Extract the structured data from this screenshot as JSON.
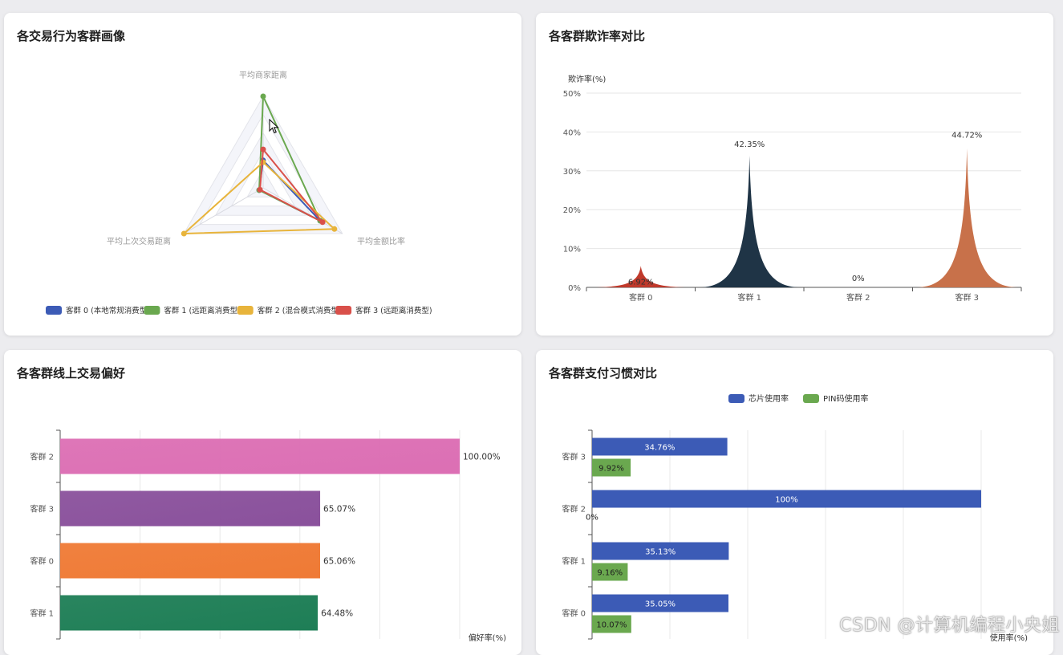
{
  "cards": {
    "radar": {
      "title": "各交易行为客群画像"
    },
    "fraud": {
      "title": "各客群欺诈率对比"
    },
    "online": {
      "title": "各客群线上交易偏好"
    },
    "payment": {
      "title": "各客群支付习惯对比"
    }
  },
  "watermark": "CSDN @计算机编程小央姐",
  "chart_data": [
    {
      "id": "radar",
      "type": "radar",
      "indicators": [
        "平均商家距离",
        "平均金额比率",
        "平均上次交易距离"
      ],
      "max": 1,
      "series": [
        {
          "name": "客群 0 (本地常规消费型)",
          "color": "#3c5bb6",
          "values": [
            0.3,
            0.72,
            0.05
          ]
        },
        {
          "name": "客群 1 (远距离消费型)",
          "color": "#6aa84f",
          "values": [
            1.0,
            0.72,
            0.05
          ]
        },
        {
          "name": "客群 2 (混合模式消费型)",
          "color": "#e8b43b",
          "values": [
            0.28,
            0.9,
            1.0
          ]
        },
        {
          "name": "客群 3 (远距离消费型)",
          "color": "#d9504a",
          "values": [
            0.42,
            0.75,
            0.04
          ]
        }
      ],
      "legend_position": "bottom"
    },
    {
      "id": "fraud",
      "type": "area",
      "ylabel": "欺诈率(%)",
      "ylim": [
        0,
        50
      ],
      "yticks": [
        "0%",
        "10%",
        "20%",
        "30%",
        "40%",
        "50%"
      ],
      "categories": [
        "客群 0",
        "客群 1",
        "客群 2",
        "客群 3"
      ],
      "values": [
        6.92,
        42.35,
        0,
        44.72
      ],
      "labels": [
        "6.92%",
        "42.35%",
        "0%",
        "44.72%"
      ],
      "colors": [
        "#c0392b",
        "#1f3446",
        "#888888",
        "#c8714a"
      ],
      "grid": true
    },
    {
      "id": "online",
      "type": "bar",
      "orientation": "horizontal",
      "xlabel": "偏好率(%)",
      "xlim": [
        0,
        100
      ],
      "categories": [
        "客群 2",
        "客群 3",
        "客群 0",
        "客群 1"
      ],
      "values": [
        100.0,
        65.07,
        65.06,
        64.48
      ],
      "labels": [
        "100.00%",
        "65.07%",
        "65.06%",
        "64.48%"
      ],
      "colors": [
        "#dc6fb4",
        "#8a519c",
        "#ef7a35",
        "#1e7e56"
      ],
      "grid": true
    },
    {
      "id": "payment",
      "type": "bar",
      "orientation": "horizontal",
      "xlabel": "使用率(%)",
      "xlim": [
        0,
        100
      ],
      "categories": [
        "客群 3",
        "客群 2",
        "客群 1",
        "客群 0"
      ],
      "series": [
        {
          "name": "芯片使用率",
          "color": "#3c5bb6",
          "values": [
            34.76,
            100,
            35.13,
            35.05
          ],
          "labels": [
            "34.76%",
            "100%",
            "35.13%",
            "35.05%"
          ]
        },
        {
          "name": "PIN码使用率",
          "color": "#6aa84f",
          "values": [
            9.92,
            0,
            9.16,
            10.07
          ],
          "labels": [
            "9.92%",
            "0%",
            "9.16%",
            "10.07%"
          ]
        }
      ],
      "legend_position": "top",
      "grid": true
    }
  ]
}
